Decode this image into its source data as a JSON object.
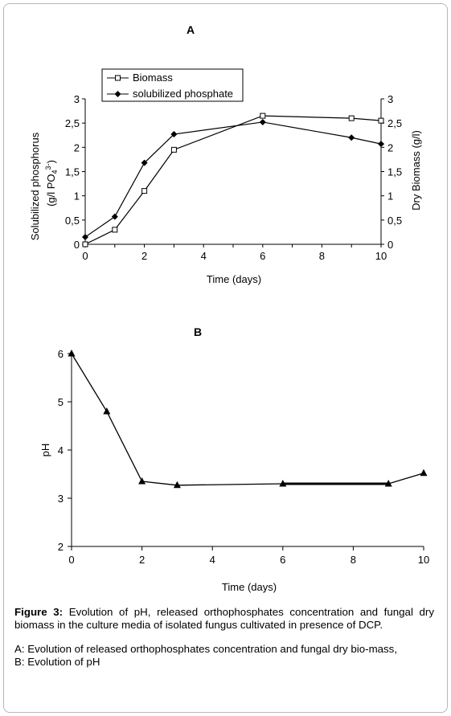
{
  "chart_data": [
    {
      "panel": "A",
      "type": "line",
      "xlabel": "Time (days)",
      "ylabel_left": [
        "Solubilized phosphorus",
        "(g/l PO",
        "4",
        "3-",
        ")"
      ],
      "ylabel_right": "Dry Biomass (g/l)",
      "xlim": [
        0,
        10
      ],
      "ylim": [
        0,
        3
      ],
      "x_ticks": [
        "0",
        "2",
        "4",
        "6",
        "8",
        "10"
      ],
      "y_ticks": [
        "0",
        "0,5",
        "1",
        "1,5",
        "2",
        "2,5",
        "3"
      ],
      "legend_position": "top-left",
      "series": [
        {
          "name": "Biomass",
          "marker": "open-square",
          "axis": "right",
          "x": [
            0,
            1,
            2,
            3,
            6,
            9,
            10
          ],
          "y": [
            0.0,
            0.3,
            1.1,
            1.95,
            2.65,
            2.6,
            2.55
          ]
        },
        {
          "name": "solubilized phosphate",
          "marker": "filled-diamond",
          "axis": "left",
          "x": [
            0,
            1,
            2,
            3,
            6,
            9,
            10
          ],
          "y": [
            0.15,
            0.57,
            1.68,
            2.27,
            2.52,
            2.2,
            2.07
          ]
        }
      ]
    },
    {
      "panel": "B",
      "type": "line",
      "xlabel": "Time (days)",
      "ylabel": "pH",
      "xlim": [
        0,
        10
      ],
      "ylim": [
        2,
        6
      ],
      "x_ticks": [
        "0",
        "2",
        "4",
        "6",
        "8",
        "10"
      ],
      "y_ticks": [
        "2",
        "3",
        "4",
        "5",
        "6"
      ],
      "series": [
        {
          "marker": "filled-triangle",
          "x": [
            0,
            1,
            2,
            3,
            6,
            9,
            10
          ],
          "y": [
            6.0,
            4.8,
            3.35,
            3.27,
            3.3,
            3.3,
            3.52
          ]
        }
      ]
    }
  ],
  "caption": {
    "figure_label": "Figure 3:",
    "figure_text": " Evolution of pH, released orthophosphates concentration and fungal dry biomass in the culture media of isolated fungus cultivated in presence of DCP.",
    "line_a": "A: Evolution of released orthophosphates concentration and fungal dry bio-mass,",
    "line_b": "B: Evolution of pH"
  }
}
